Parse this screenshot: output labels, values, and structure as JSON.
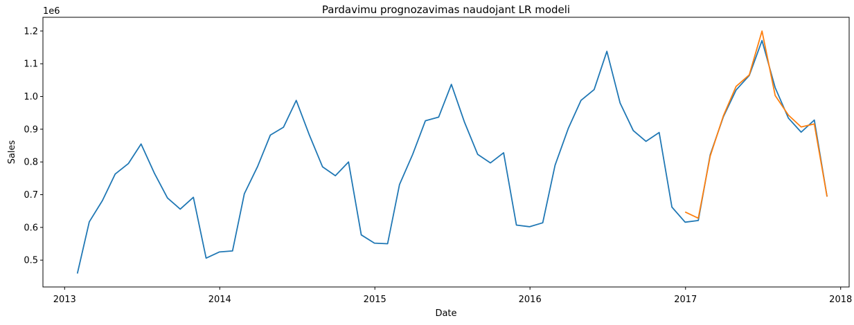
{
  "chart_data": {
    "type": "line",
    "title": "Pardavimu prognozavimas naudojant LR modeli",
    "xlabel": "Date",
    "ylabel": "Sales",
    "y_offset_label": "1e6",
    "x_ticks": [
      "2013",
      "2014",
      "2015",
      "2016",
      "2017",
      "2018"
    ],
    "y_ticks": [
      "0.5",
      "0.6",
      "0.7",
      "0.8",
      "0.9",
      "1.0",
      "1.1",
      "1.2"
    ],
    "y_tick_values": [
      500000,
      600000,
      700000,
      800000,
      900000,
      1000000,
      1100000,
      1200000
    ],
    "xlim": [
      "2012-11-11",
      "2018-01-21"
    ],
    "ylim": [
      418000,
      1242000
    ],
    "grid": false,
    "legend": "none",
    "series": [
      {
        "color": "#1f77b4",
        "x": [
          "2013-01-31",
          "2013-02-28",
          "2013-03-31",
          "2013-04-30",
          "2013-05-31",
          "2013-06-30",
          "2013-07-31",
          "2013-08-31",
          "2013-09-30",
          "2013-10-31",
          "2013-11-30",
          "2013-12-31",
          "2014-01-31",
          "2014-02-28",
          "2014-03-31",
          "2014-04-30",
          "2014-05-31",
          "2014-06-30",
          "2014-07-31",
          "2014-08-31",
          "2014-09-30",
          "2014-10-31",
          "2014-11-30",
          "2014-12-31",
          "2015-01-31",
          "2015-02-28",
          "2015-03-31",
          "2015-04-30",
          "2015-05-31",
          "2015-06-30",
          "2015-07-31",
          "2015-08-31",
          "2015-09-30",
          "2015-10-31",
          "2015-11-30",
          "2015-12-31",
          "2016-01-31",
          "2016-02-29",
          "2016-03-31",
          "2016-04-30",
          "2016-05-31",
          "2016-06-30",
          "2016-07-31",
          "2016-08-31",
          "2016-09-30",
          "2016-10-31",
          "2016-11-30",
          "2016-12-31",
          "2017-01-31",
          "2017-02-28",
          "2017-03-31",
          "2017-04-30",
          "2017-05-31",
          "2017-06-30",
          "2017-07-31",
          "2017-08-31",
          "2017-09-30",
          "2017-10-31",
          "2017-11-30"
        ],
        "values": [
          459000,
          617000,
          682000,
          763000,
          795000,
          855000,
          766000,
          690000,
          656000,
          692000,
          506000,
          525000,
          528000,
          703000,
          786000,
          882000,
          906000,
          988000,
          882000,
          785000,
          758000,
          800000,
          577000,
          552000,
          550000,
          731000,
          823000,
          926000,
          937000,
          1037000,
          921000,
          823000,
          797000,
          828000,
          607000,
          602000,
          614000,
          790000,
          902000,
          988000,
          1021000,
          1138000,
          980000,
          896000,
          863000,
          890000,
          662000,
          616000,
          621000,
          822000,
          938000,
          1020000,
          1064000,
          1171000,
          1027000,
          934000,
          891000,
          928000,
          694000
        ]
      },
      {
        "color": "#ff7f0e",
        "x": [
          "2016-12-31",
          "2017-01-31",
          "2017-02-28",
          "2017-03-31",
          "2017-04-30",
          "2017-05-31",
          "2017-06-30",
          "2017-07-31",
          "2017-08-31",
          "2017-09-30",
          "2017-10-31",
          "2017-11-30"
        ],
        "values": [
          647000,
          628000,
          818000,
          941000,
          1031000,
          1066000,
          1200000,
          1003000,
          943000,
          907000,
          916000,
          694000
        ]
      }
    ]
  }
}
